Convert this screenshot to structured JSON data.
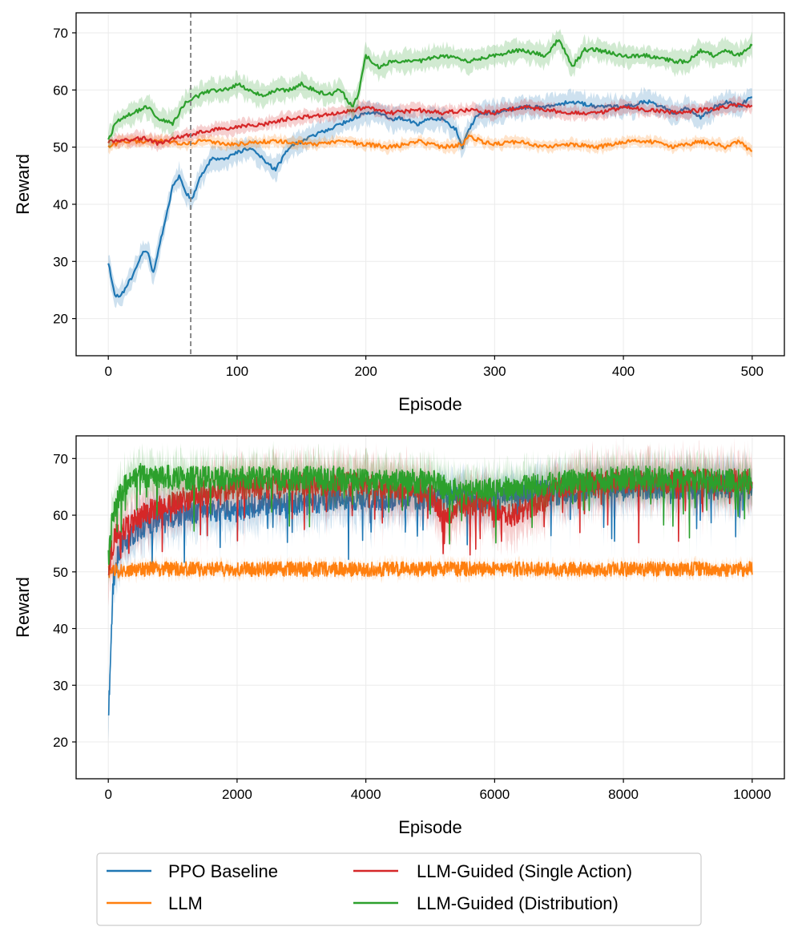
{
  "chart_data": [
    {
      "type": "line",
      "xlabel": "Episode",
      "ylabel": "Reward",
      "xlim": [
        -25,
        525
      ],
      "ylim": [
        13.5,
        73.5
      ],
      "xticks": [
        0,
        100,
        200,
        300,
        400,
        500
      ],
      "yticks": [
        20,
        30,
        40,
        50,
        60,
        70
      ],
      "grid": true,
      "vline": {
        "x": 64,
        "style": "dashed",
        "color": "#808080"
      },
      "series": [
        {
          "name": "PPO Baseline",
          "color": "#1f77b4",
          "band": 1.8,
          "x": [
            0,
            5,
            10,
            15,
            20,
            25,
            30,
            35,
            40,
            45,
            50,
            55,
            60,
            65,
            70,
            80,
            90,
            100,
            110,
            120,
            130,
            140,
            150,
            160,
            170,
            180,
            190,
            200,
            210,
            220,
            230,
            240,
            250,
            260,
            270,
            275,
            280,
            285,
            290,
            300,
            320,
            340,
            360,
            380,
            400,
            420,
            440,
            450,
            460,
            470,
            480,
            490,
            500
          ],
          "y": [
            30,
            24,
            24,
            26,
            28,
            31,
            32,
            28,
            33,
            38,
            43,
            45,
            42,
            41,
            44,
            48,
            48,
            49,
            50,
            48,
            46,
            50,
            51,
            52,
            53,
            54,
            55,
            56,
            56,
            55,
            55,
            54,
            55,
            55,
            53,
            50,
            53,
            55,
            56,
            56,
            57,
            57,
            58,
            57,
            57,
            58,
            56,
            57,
            55,
            57,
            58,
            57,
            59
          ]
        },
        {
          "name": "LLM",
          "color": "#ff7f0e",
          "band": 0.9,
          "x": [
            0,
            10,
            20,
            30,
            40,
            50,
            60,
            70,
            80,
            90,
            100,
            120,
            140,
            160,
            180,
            200,
            220,
            240,
            260,
            275,
            280,
            290,
            300,
            320,
            340,
            360,
            380,
            400,
            420,
            440,
            460,
            480,
            490,
            500
          ],
          "y": [
            50,
            51,
            51,
            51,
            51,
            51,
            50.5,
            51,
            51,
            50.5,
            50.5,
            51,
            51,
            50.5,
            51,
            50.5,
            50,
            51,
            50,
            50.5,
            52,
            51,
            50.5,
            51,
            50,
            50.5,
            50,
            51,
            51,
            50,
            51,
            50,
            51,
            49
          ]
        },
        {
          "name": "LLM-Guided (Single Action)",
          "color": "#d62728",
          "band": 1.1,
          "x": [
            0,
            10,
            20,
            30,
            40,
            50,
            60,
            80,
            100,
            120,
            140,
            160,
            180,
            200,
            210,
            220,
            240,
            260,
            280,
            300,
            320,
            340,
            360,
            380,
            400,
            420,
            440,
            460,
            480,
            490,
            500
          ],
          "y": [
            51,
            51,
            51.5,
            51.5,
            50.5,
            51.5,
            52,
            53,
            53.5,
            54,
            55,
            55.5,
            56,
            57,
            56.5,
            56,
            56.5,
            56,
            56.5,
            56,
            57,
            56.5,
            56,
            56,
            57,
            56.5,
            56,
            56.5,
            57,
            57.5,
            57
          ]
        },
        {
          "name": "LLM-Guided (Distribution)",
          "color": "#2ca02c",
          "band": 1.8,
          "x": [
            0,
            5,
            10,
            20,
            30,
            40,
            50,
            60,
            70,
            80,
            90,
            100,
            110,
            120,
            130,
            140,
            150,
            160,
            170,
            180,
            190,
            195,
            200,
            210,
            220,
            240,
            260,
            280,
            300,
            320,
            340,
            350,
            360,
            370,
            380,
            400,
            420,
            440,
            450,
            460,
            470,
            480,
            490,
            500
          ],
          "y": [
            51,
            54,
            55,
            56,
            57,
            55,
            54,
            58,
            59,
            60,
            60,
            61,
            60,
            59,
            60,
            60,
            61,
            60,
            59,
            60,
            57,
            60,
            66,
            64,
            65,
            65,
            66,
            65,
            66,
            67,
            66,
            69,
            64,
            67,
            67,
            66,
            66,
            65,
            65,
            67,
            66,
            67,
            66,
            68
          ]
        }
      ]
    },
    {
      "type": "line",
      "xlabel": "Episode",
      "ylabel": "Reward",
      "xlim": [
        -500,
        10500
      ],
      "ylim": [
        13.5,
        74
      ],
      "xticks": [
        0,
        2000,
        4000,
        6000,
        8000,
        10000
      ],
      "yticks": [
        20,
        30,
        40,
        50,
        60,
        70
      ],
      "grid": true,
      "series": [
        {
          "name": "PPO Baseline",
          "color": "#1f77b4",
          "band": 2.2,
          "x": [
            0,
            20,
            40,
            60,
            80,
            100,
            150,
            200,
            300,
            400,
            500,
            700,
            1000,
            1500,
            2000,
            2500,
            3000,
            3500,
            4000,
            4500,
            5000,
            5500,
            6000,
            6500,
            7000,
            7500,
            8000,
            8500,
            9000,
            9500,
            10000
          ],
          "y": [
            25,
            30,
            38,
            44,
            48,
            50,
            53,
            55,
            56,
            57,
            58,
            59,
            60,
            61,
            61,
            62,
            62,
            63,
            63,
            63,
            63,
            63,
            63,
            64,
            64,
            65,
            65,
            65,
            65,
            65,
            65
          ]
        },
        {
          "name": "LLM",
          "color": "#ff7f0e",
          "band": 1.0,
          "x": [
            0,
            500,
            1000,
            1500,
            2000,
            2500,
            3000,
            3500,
            4000,
            4500,
            5000,
            5500,
            6000,
            6500,
            7000,
            7500,
            8000,
            8500,
            9000,
            9500,
            10000
          ],
          "y": [
            50,
            50.5,
            50.5,
            50.5,
            50.5,
            50.5,
            50.5,
            50.5,
            50.5,
            50.5,
            50.5,
            50.5,
            50.5,
            50.5,
            50.5,
            50.5,
            50.5,
            50.5,
            50.5,
            50.5,
            50.5
          ]
        },
        {
          "name": "LLM-Guided (Single Action)",
          "color": "#d62728",
          "band": 2.5,
          "x": [
            0,
            50,
            100,
            200,
            400,
            700,
            1000,
            1500,
            2000,
            2500,
            3000,
            3500,
            4000,
            4500,
            5000,
            5200,
            5500,
            5800,
            6200,
            6500,
            6800,
            7000,
            7500,
            8000,
            8500,
            9000,
            9500,
            10000
          ],
          "y": [
            50,
            54,
            56,
            57,
            59,
            61,
            62,
            64,
            65,
            65,
            65.5,
            65.5,
            65.5,
            65,
            64,
            60,
            62,
            62,
            60,
            61,
            63,
            65,
            65.5,
            66,
            66,
            66,
            66,
            66
          ]
        },
        {
          "name": "LLM-Guided (Distribution)",
          "color": "#2ca02c",
          "band": 2.0,
          "x": [
            0,
            50,
            100,
            200,
            300,
            500,
            700,
            1000,
            1500,
            2000,
            2500,
            3000,
            3500,
            4000,
            4500,
            5000,
            5500,
            6000,
            6500,
            7000,
            7500,
            8000,
            8500,
            9000,
            9500,
            10000
          ],
          "y": [
            52,
            58,
            61,
            64,
            66,
            67,
            67,
            66.5,
            66.5,
            66.5,
            66.5,
            66.5,
            66.5,
            66,
            66,
            66,
            64,
            64.5,
            65,
            66,
            66,
            66.5,
            66.5,
            66.5,
            66,
            66
          ]
        }
      ]
    }
  ],
  "legend": {
    "items": [
      {
        "label": "PPO Baseline",
        "color": "#1f77b4"
      },
      {
        "label": "LLM",
        "color": "#ff7f0e"
      },
      {
        "label": "LLM-Guided (Single Action)",
        "color": "#d62728"
      },
      {
        "label": "LLM-Guided (Distribution)",
        "color": "#2ca02c"
      }
    ]
  }
}
